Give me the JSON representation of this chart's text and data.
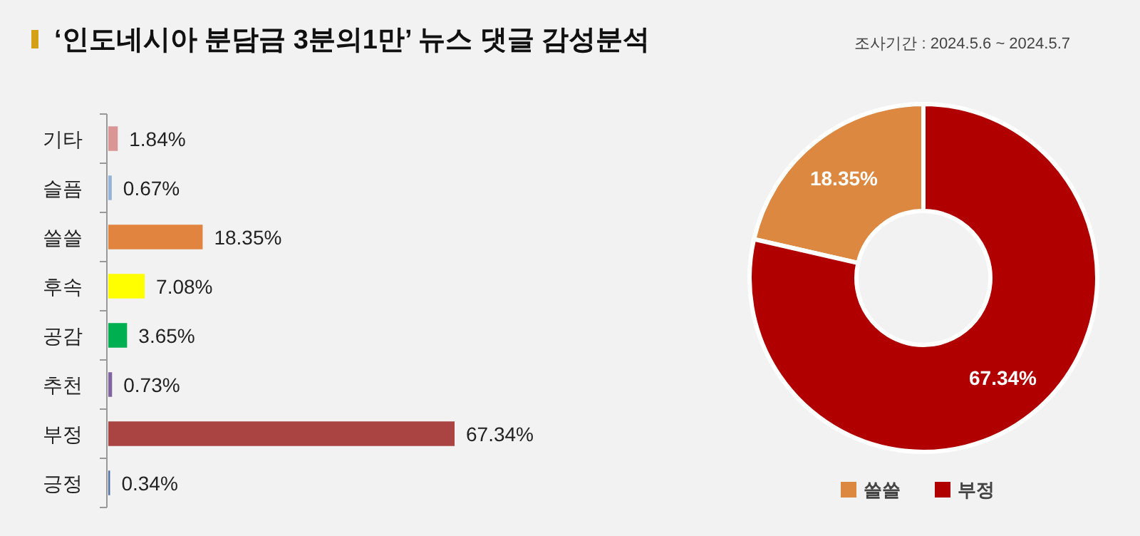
{
  "chart_data": [
    {
      "type": "bar",
      "title": "‘인도네시아 분담금 3분의1만’ 뉴스 댓글 감성분석",
      "orientation": "horizontal",
      "categories": [
        "기타",
        "슬픔",
        "쓸쓸",
        "후속",
        "공감",
        "추천",
        "부정",
        "긍정"
      ],
      "values": [
        1.84,
        0.67,
        18.35,
        7.08,
        3.65,
        0.73,
        67.34,
        0.34
      ],
      "value_labels": [
        "1.84%",
        "0.67%",
        "18.35%",
        "7.08%",
        "3.65%",
        "0.73%",
        "67.34%",
        "0.34%"
      ],
      "colors": [
        "#d99694",
        "#95b3d7",
        "#e0843f",
        "#ffff00",
        "#00b050",
        "#8064a2",
        "#a94442",
        "#4f6fa8"
      ]
    },
    {
      "type": "donut",
      "subtitle": "조사기간 : 2024.5.6 ~ 2024.5.7",
      "categories": [
        "쓸쓸",
        "부정"
      ],
      "values": [
        18.35,
        67.34
      ],
      "value_labels": [
        "18.35%",
        "67.34%"
      ],
      "colors": [
        "#dd8840",
        "#b00000"
      ],
      "legend": "bottom"
    }
  ]
}
